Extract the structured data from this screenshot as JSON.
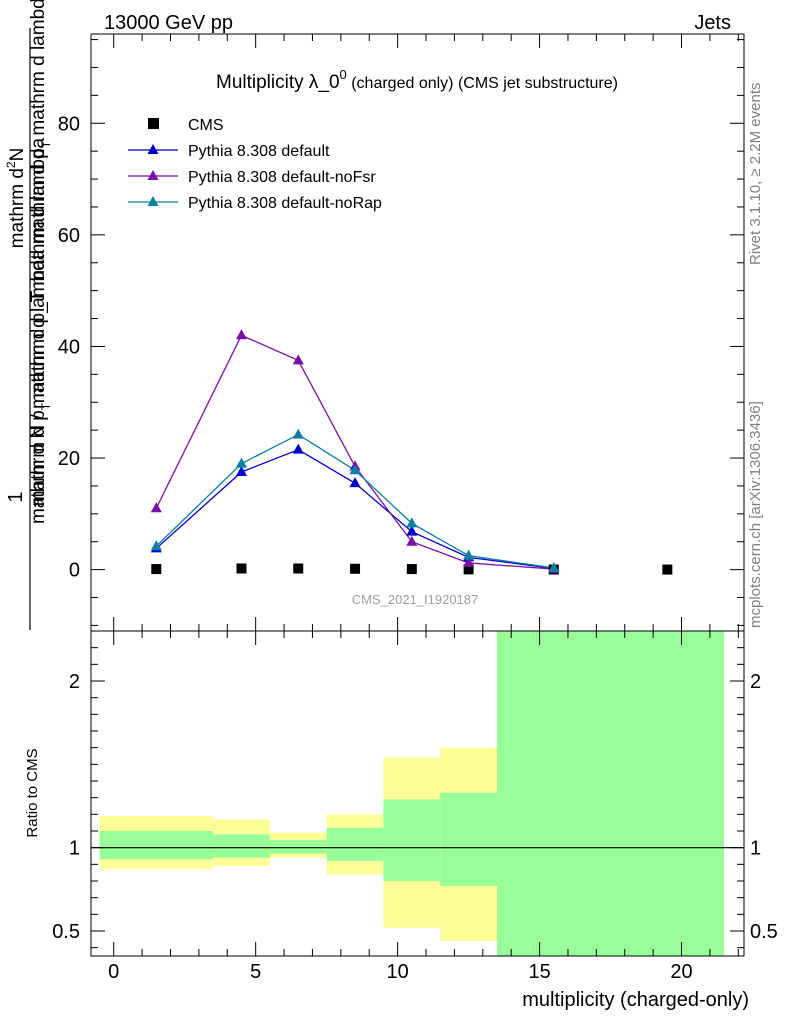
{
  "header": {
    "left": "13000 GeV pp",
    "right": "Jets"
  },
  "side_labels": {
    "rivet": "Rivet 3.1.10, ≥ 2.2M events",
    "mcplots": "mcplots.cern.ch [arXiv:1306.3436]"
  },
  "chart_data": [
    {
      "type": "line",
      "title_main": "Multiplicity λ_0",
      "title_sup": "0",
      "title_rest": " (charged only) (CMS jet substructure)",
      "ylabel_top": "1",
      "ylabel_bottom": "mathrm d N / mathrm d p_T mathrm d lambda",
      "ylabel_line1": "mathrm d",
      "ylabel_line1_sup": "2",
      "ylabel_line1_rest": "N",
      "ylabel_line2": "mathrm d p",
      "ylabel_line2_sub": "T",
      "ylabel_line2_rest": " mathrm d lambda",
      "ylabel_frac_top": "mathrm d²N",
      "ylabel_frac_bottom": "mathrm d p_T mathrm d lambda",
      "xlim": [
        -0.8,
        22.2
      ],
      "ylim": [
        -11,
        96
      ],
      "yticks": [
        0,
        20,
        40,
        60,
        80
      ],
      "legend": [
        "CMS",
        "Pythia 8.308 default",
        "Pythia 8.308 default-noFsr",
        "Pythia 8.308 default-noRap"
      ],
      "watermark": "CMS_2021_I1920187",
      "series": [
        {
          "name": "CMS",
          "color": "#000000",
          "marker": "square",
          "x": [
            1.5,
            4.5,
            6.5,
            8.5,
            10.5,
            12.5,
            15.5,
            19.5
          ],
          "y": [
            0.1,
            0.2,
            0.2,
            0.15,
            0.1,
            0.05,
            0.02,
            0.01
          ]
        },
        {
          "name": "Pythia 8.308 default",
          "color": "#0000cc",
          "marker": "triangle",
          "x": [
            1.5,
            4.5,
            6.5,
            8.5,
            10.5,
            12.5,
            15.5
          ],
          "y": [
            3.8,
            17.5,
            21.5,
            15.5,
            6.8,
            2.2,
            0.2
          ]
        },
        {
          "name": "Pythia 8.308 default-noFsr",
          "color": "#7a0fa8",
          "marker": "triangle",
          "x": [
            1.5,
            4.5,
            6.5,
            8.5,
            10.5,
            12.5,
            15.5
          ],
          "y": [
            11.0,
            42.0,
            37.5,
            18.5,
            5.0,
            1.2,
            0.1
          ]
        },
        {
          "name": "Pythia 8.308 default-noRap",
          "color": "#0a7fa3",
          "marker": "triangle",
          "x": [
            1.5,
            4.5,
            6.5,
            8.5,
            10.5,
            12.5,
            15.5
          ],
          "y": [
            4.2,
            19.0,
            24.2,
            17.8,
            8.3,
            2.5,
            0.3
          ]
        }
      ]
    },
    {
      "type": "area",
      "ylabel": "Ratio to CMS",
      "xlabel": "multiplicity (charged-only)",
      "xlim": [
        -0.8,
        22.2
      ],
      "ylim": [
        0.35,
        2.3
      ],
      "yticks": [
        0.5,
        1,
        2
      ],
      "ytick_labels": [
        "0.5",
        "1",
        "2"
      ],
      "xticks": [
        0,
        5,
        10,
        15,
        20
      ],
      "reference_line": 1,
      "bands": [
        {
          "x": [
            -0.5,
            3.5
          ],
          "stat": [
            0.93,
            1.1
          ],
          "total": [
            0.87,
            1.19
          ]
        },
        {
          "x": [
            3.5,
            5.5
          ],
          "stat": [
            0.94,
            1.08
          ],
          "total": [
            0.89,
            1.17
          ]
        },
        {
          "x": [
            5.5,
            7.5
          ],
          "stat": [
            0.965,
            1.045
          ],
          "total": [
            0.94,
            1.09
          ]
        },
        {
          "x": [
            7.5,
            9.5
          ],
          "stat": [
            0.92,
            1.12
          ],
          "total": [
            0.84,
            1.2
          ]
        },
        {
          "x": [
            9.5,
            11.5
          ],
          "stat": [
            0.8,
            1.29
          ],
          "total": [
            0.52,
            1.54
          ]
        },
        {
          "x": [
            11.5,
            13.5
          ],
          "stat": [
            0.77,
            1.33
          ],
          "total": [
            0.44,
            1.6
          ]
        },
        {
          "x": [
            13.5,
            21.5
          ],
          "stat": [
            0.35,
            2.3
          ],
          "total": [
            0.35,
            2.3
          ]
        }
      ],
      "band_colors": {
        "stat": "#99ff99",
        "total": "#ffff99"
      }
    }
  ]
}
